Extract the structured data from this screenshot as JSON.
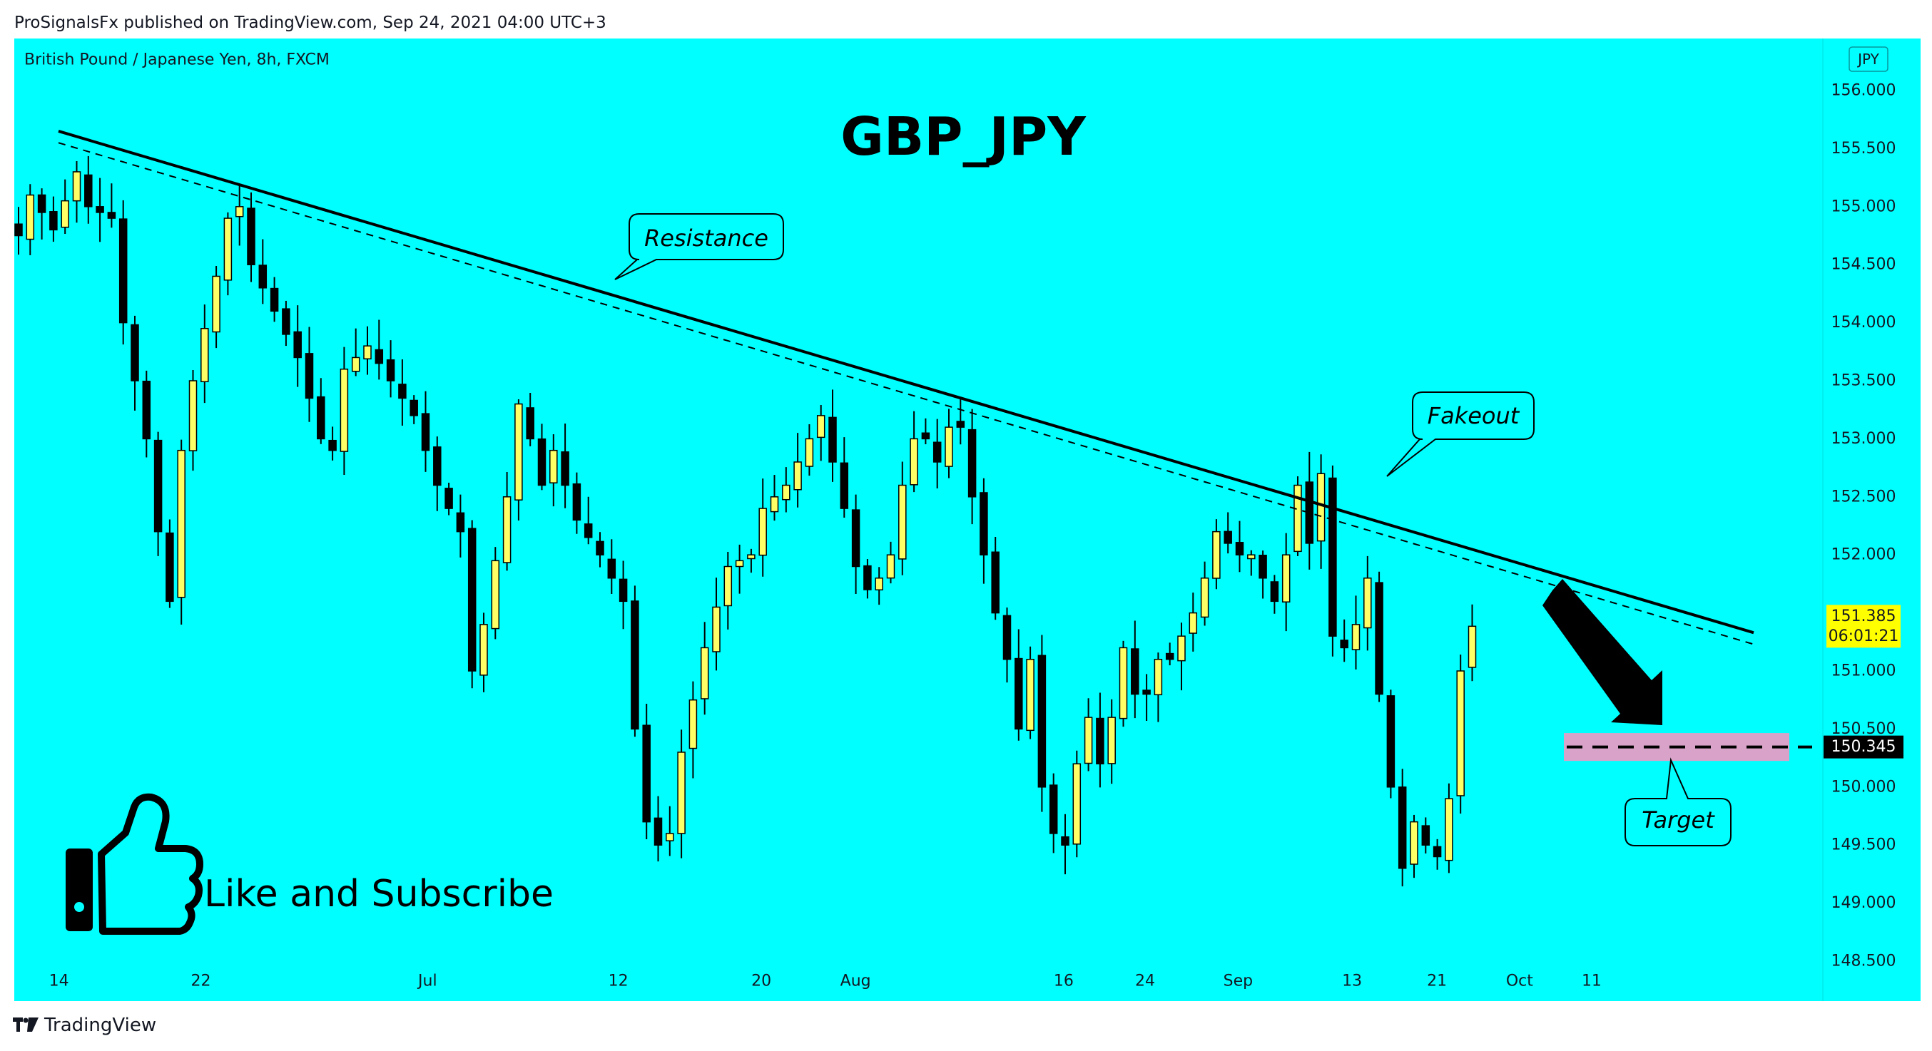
{
  "header": {
    "published_line": "ProSignalsFx published on TradingView.com, Sep 24, 2021 04:00 UTC+3"
  },
  "footer": {
    "brand": "TradingView"
  },
  "colors": {
    "background": "#00ffff",
    "candle_up": "#ffff66",
    "candle_down": "#000000",
    "target_zone": "#d9a3c9",
    "price_label_bg": "#ffff00"
  },
  "chart_data": {
    "type": "candlestick",
    "symbol_line": "British Pound / Japanese Yen, 8h, FXCM",
    "title": "GBP_JPY",
    "currency_badge": "JPY",
    "x_tick_labels": [
      "14",
      "22",
      "Jul",
      "12",
      "20",
      "Aug",
      "16",
      "24",
      "Sep",
      "13",
      "21",
      "Oct",
      "11"
    ],
    "y_tick_labels": [
      "156.000",
      "155.500",
      "155.000",
      "154.500",
      "154.000",
      "153.500",
      "153.000",
      "152.500",
      "152.000",
      "151.500",
      "151.000",
      "150.500",
      "150.000",
      "149.500",
      "149.000",
      "148.500"
    ],
    "ylim": [
      148.5,
      156.1
    ],
    "grid": false,
    "close_anchors": [
      [
        0,
        154.75
      ],
      [
        1,
        155.1
      ],
      [
        3,
        154.8
      ],
      [
        5,
        155.3
      ],
      [
        6,
        155.0
      ],
      [
        8,
        154.9
      ],
      [
        9,
        154.0
      ],
      [
        11,
        153.0
      ],
      [
        12,
        152.2
      ],
      [
        13,
        151.6
      ],
      [
        14,
        152.9
      ],
      [
        15,
        153.5
      ],
      [
        17,
        154.4
      ],
      [
        18,
        154.9
      ],
      [
        19,
        155.0
      ],
      [
        20,
        154.5
      ],
      [
        22,
        154.1
      ],
      [
        24,
        153.7
      ],
      [
        26,
        153.0
      ],
      [
        27,
        152.9
      ],
      [
        28,
        153.6
      ],
      [
        30,
        153.8
      ],
      [
        32,
        153.5
      ],
      [
        34,
        153.2
      ],
      [
        36,
        152.6
      ],
      [
        38,
        152.2
      ],
      [
        39,
        151.0
      ],
      [
        40,
        151.4
      ],
      [
        42,
        152.5
      ],
      [
        43,
        153.3
      ],
      [
        44,
        153.0
      ],
      [
        45,
        152.6
      ],
      [
        46,
        152.9
      ],
      [
        48,
        152.3
      ],
      [
        50,
        152.0
      ],
      [
        52,
        151.6
      ],
      [
        53,
        150.5
      ],
      [
        54,
        149.7
      ],
      [
        55,
        149.5
      ],
      [
        56,
        149.6
      ],
      [
        57,
        150.3
      ],
      [
        59,
        151.2
      ],
      [
        61,
        151.9
      ],
      [
        63,
        152.0
      ],
      [
        64,
        152.4
      ],
      [
        66,
        152.6
      ],
      [
        68,
        153.0
      ],
      [
        69,
        153.2
      ],
      [
        70,
        152.8
      ],
      [
        71,
        152.4
      ],
      [
        72,
        151.9
      ],
      [
        73,
        151.7
      ],
      [
        74,
        151.8
      ],
      [
        75,
        152.0
      ],
      [
        76,
        152.6
      ],
      [
        77,
        153.0
      ],
      [
        78,
        153.0
      ],
      [
        79,
        152.8
      ],
      [
        80,
        153.1
      ],
      [
        81,
        153.1
      ],
      [
        82,
        152.5
      ],
      [
        83,
        152.0
      ],
      [
        84,
        151.5
      ],
      [
        85,
        151.1
      ],
      [
        86,
        150.5
      ],
      [
        87,
        151.1
      ],
      [
        88,
        150.0
      ],
      [
        89,
        149.6
      ],
      [
        90,
        149.5
      ],
      [
        91,
        150.2
      ],
      [
        92,
        150.6
      ],
      [
        93,
        150.2
      ],
      [
        94,
        150.6
      ],
      [
        95,
        151.2
      ],
      [
        96,
        150.8
      ],
      [
        97,
        150.8
      ],
      [
        98,
        151.1
      ],
      [
        99,
        151.1
      ],
      [
        100,
        151.3
      ],
      [
        101,
        151.5
      ],
      [
        102,
        151.8
      ],
      [
        103,
        152.2
      ],
      [
        104,
        152.1
      ],
      [
        105,
        152.0
      ],
      [
        106,
        152.0
      ],
      [
        107,
        151.8
      ],
      [
        108,
        151.6
      ],
      [
        109,
        152.0
      ],
      [
        110,
        152.6
      ],
      [
        111,
        152.1
      ],
      [
        112,
        152.7
      ],
      [
        113,
        151.3
      ],
      [
        114,
        151.2
      ],
      [
        115,
        151.4
      ],
      [
        116,
        151.8
      ],
      [
        117,
        150.8
      ],
      [
        118,
        150.0
      ],
      [
        119,
        149.3
      ],
      [
        120,
        149.7
      ],
      [
        121,
        149.5
      ],
      [
        122,
        149.4
      ],
      [
        123,
        149.9
      ],
      [
        124,
        151.0
      ],
      [
        125,
        151.385
      ]
    ],
    "price_labels": [
      {
        "price": 151.385,
        "text": "151.385",
        "countdown": "06:01:21"
      },
      {
        "price": 150.345,
        "text": "150.345"
      }
    ],
    "target_level": 150.345,
    "resistance_line": {
      "start_price": 155.65,
      "end_price": 151.33
    },
    "annotations": {
      "resistance": "Resistance",
      "fakeout": "Fakeout",
      "target": "Target",
      "like_subscribe": "Like and Subscribe"
    }
  }
}
